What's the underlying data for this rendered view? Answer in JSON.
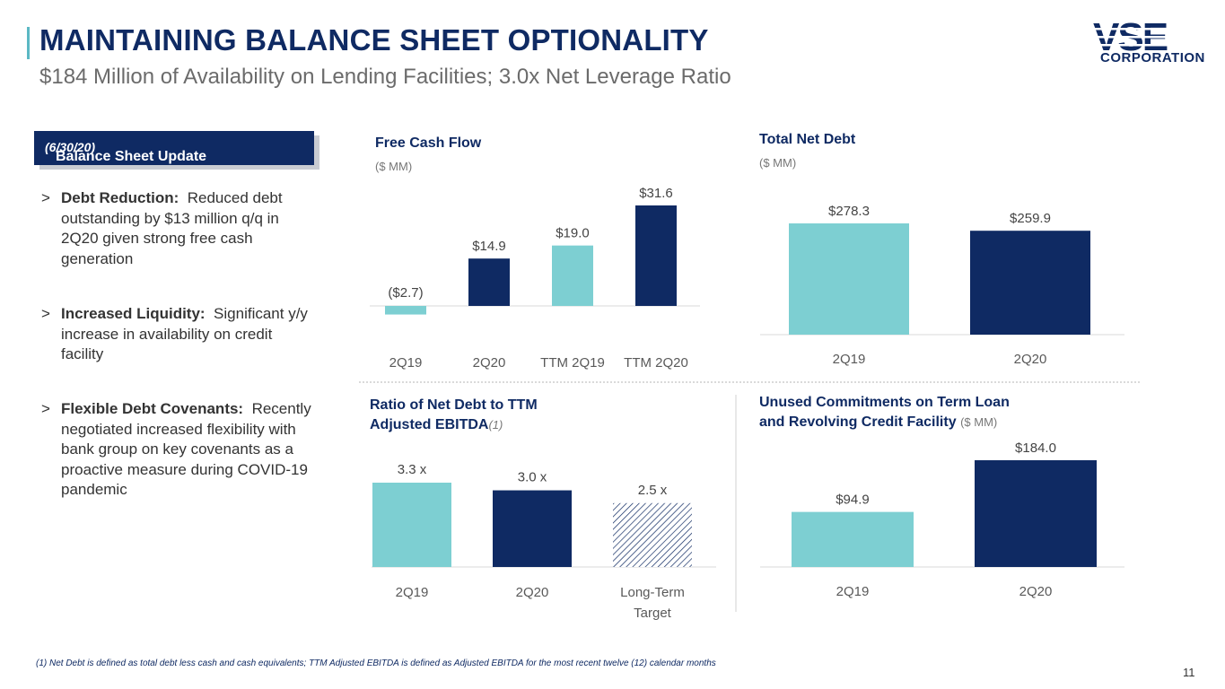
{
  "header": {
    "title": "MAINTAINING BALANCE SHEET OPTIONALITY",
    "subtitle": "$184 Million of Availability on Lending Facilities; 3.0x Net Leverage Ratio"
  },
  "logo": {
    "main": "VSE",
    "sub": "CORPORATION"
  },
  "sidebar": {
    "label": "Balance Sheet Update",
    "label_date": "(6/30/20)",
    "marker": ">",
    "bullets": [
      {
        "heading": "Debt Reduction:",
        "text": "Reduced debt outstanding by $13 million q/q in 2Q20 given strong free cash generation"
      },
      {
        "heading": "Increased Liquidity:",
        "text": "Significant y/y increase in availability on credit facility"
      },
      {
        "heading": "Flexible Debt Covenants:",
        "text": "Recently negotiated increased flexibility with bank group on key covenants as a proactive measure during COVID-19 pandemic"
      }
    ]
  },
  "colors": {
    "navy": "#0f2a63",
    "teal": "#7dcfd2",
    "axis": "#d9d9d9"
  },
  "chart_data": [
    {
      "type": "bar",
      "title": "Free Cash Flow",
      "unit": "($ MM)",
      "categories": [
        "2Q19",
        "2Q20",
        "TTM 2Q19",
        "TTM 2Q20"
      ],
      "values": [
        -2.7,
        14.9,
        19.0,
        31.6
      ],
      "labels": [
        "($2.7)",
        "$14.9",
        "$19.0",
        "$31.6"
      ],
      "colors": [
        "teal",
        "navy",
        "teal",
        "navy"
      ]
    },
    {
      "type": "bar",
      "title": "Total Net Debt",
      "unit": "($ MM)",
      "categories": [
        "2Q19",
        "2Q20"
      ],
      "values": [
        278.3,
        259.9
      ],
      "labels": [
        "$278.3",
        "$259.9"
      ],
      "colors": [
        "teal",
        "navy"
      ]
    },
    {
      "type": "bar",
      "title_line1": "Ratio of Net Debt to TTM",
      "title_line2": "Adjusted EBITDA",
      "title_note": "(1)",
      "categories": [
        "2Q19",
        "2Q20",
        "Long-Term Target"
      ],
      "values": [
        3.3,
        3.0,
        2.5
      ],
      "labels": [
        "3.3 x",
        "3.0 x",
        "2.5 x"
      ],
      "colors": [
        "teal",
        "navy",
        "hatched"
      ]
    },
    {
      "type": "bar",
      "title_line1": "Unused Commitments on Term Loan",
      "title_line2": "and Revolving Credit Facility",
      "unit": "($ MM)",
      "categories": [
        "2Q19",
        "2Q20"
      ],
      "values": [
        94.9,
        184.0
      ],
      "labels": [
        "$94.9",
        "$184.0"
      ],
      "colors": [
        "teal",
        "navy"
      ]
    }
  ],
  "footnote": "(1)    Net Debt is defined as total debt less cash and cash equivalents; TTM Adjusted EBITDA is defined as Adjusted EBITDA for the most recent twelve (12) calendar months",
  "page_number": "11"
}
